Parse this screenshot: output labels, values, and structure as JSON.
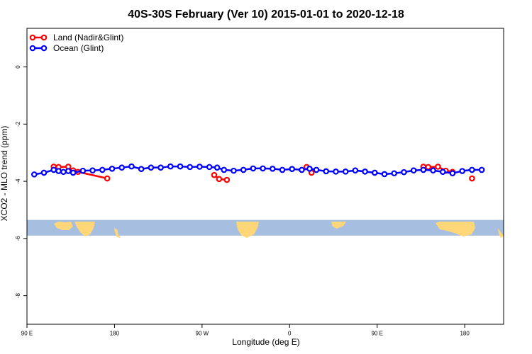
{
  "chart_data": {
    "type": "line",
    "title": "40S-30S February (Ver 10)   2015-01-01 to 2020-12-18",
    "xlabel": "Longitude (deg E)",
    "ylabel": "XCO2 - MLO trend (ppm)",
    "xlim": [
      90,
      580
    ],
    "ylim": [
      -9,
      1.35
    ],
    "xticks": [
      {
        "value": 90,
        "label": "90 E"
      },
      {
        "value": 180,
        "label": "180"
      },
      {
        "value": 270,
        "label": "90 W"
      },
      {
        "value": 360,
        "label": "0"
      },
      {
        "value": 450,
        "label": "90 E"
      },
      {
        "value": 540,
        "label": "180"
      }
    ],
    "yticks": [
      {
        "value": 0,
        "label": "0"
      },
      {
        "value": -2,
        "label": "-2"
      },
      {
        "value": -4,
        "label": "-4"
      },
      {
        "value": -6,
        "label": "-6"
      },
      {
        "value": -8,
        "label": "-8"
      }
    ],
    "grid": false,
    "legend_position": "top-left",
    "series": [
      {
        "name": "Land (Nadir&Glint)",
        "color": "#ff0000",
        "segments": [
          [
            [
              117.5,
              -3.49
            ],
            [
              122.5,
              -3.5
            ],
            [
              132.5,
              -3.49
            ],
            [
              137.5,
              -3.62
            ],
            [
              142.5,
              -3.67
            ],
            [
              172.5,
              -3.9
            ]
          ],
          [
            [
              282.5,
              -3.78
            ],
            [
              287.5,
              -3.92
            ],
            [
              295.5,
              -3.95
            ]
          ],
          [
            [
              377.5,
              -3.5
            ],
            [
              382.5,
              -3.7
            ]
          ],
          [
            [
              497.5,
              -3.49
            ],
            [
              502.5,
              -3.5
            ],
            [
              512.5,
              -3.49
            ],
            [
              520.5,
              -3.63
            ],
            [
              527.5,
              -3.67
            ]
          ],
          [
            [
              547.5,
              -3.9
            ]
          ]
        ]
      },
      {
        "name": "Ocean (Glint)",
        "color": "#0000ff",
        "segments": [
          [
            [
              97.5,
              -3.76
            ],
            [
              107.5,
              -3.7
            ],
            [
              117.5,
              -3.6
            ],
            [
              122.5,
              -3.64
            ],
            [
              127.5,
              -3.67
            ],
            [
              132.5,
              -3.64
            ],
            [
              137.5,
              -3.7
            ],
            [
              147.5,
              -3.63
            ],
            [
              157.5,
              -3.62
            ],
            [
              167.5,
              -3.6
            ],
            [
              177.5,
              -3.56
            ],
            [
              187.5,
              -3.52
            ],
            [
              197.5,
              -3.48
            ],
            [
              207.5,
              -3.57
            ],
            [
              217.5,
              -3.52
            ],
            [
              227.5,
              -3.52
            ],
            [
              237.5,
              -3.48
            ],
            [
              247.5,
              -3.48
            ],
            [
              257.5,
              -3.5
            ],
            [
              267.5,
              -3.49
            ],
            [
              277.5,
              -3.5
            ],
            [
              285.5,
              -3.52
            ],
            [
              292.5,
              -3.6
            ],
            [
              302.5,
              -3.63
            ],
            [
              312.5,
              -3.6
            ],
            [
              322.5,
              -3.55
            ],
            [
              332.5,
              -3.55
            ],
            [
              342.5,
              -3.56
            ],
            [
              352.5,
              -3.6
            ],
            [
              362.5,
              -3.57
            ],
            [
              372.5,
              -3.6
            ],
            [
              380.5,
              -3.56
            ],
            [
              387.5,
              -3.6
            ],
            [
              397.5,
              -3.65
            ],
            [
              407.5,
              -3.66
            ],
            [
              417.5,
              -3.66
            ],
            [
              427.5,
              -3.62
            ],
            [
              437.5,
              -3.66
            ],
            [
              447.5,
              -3.7
            ],
            [
              457.5,
              -3.75
            ],
            [
              467.5,
              -3.72
            ],
            [
              477.5,
              -3.68
            ],
            [
              487.5,
              -3.62
            ],
            [
              497.5,
              -3.6
            ],
            [
              507.5,
              -3.62
            ],
            [
              517.5,
              -3.67
            ],
            [
              527.5,
              -3.72
            ],
            [
              537.5,
              -3.64
            ],
            [
              547.5,
              -3.6
            ],
            [
              557.5,
              -3.6
            ]
          ]
        ]
      }
    ],
    "map_strip": {
      "y_range": [
        -5.35,
        -5.9
      ],
      "ocean_color": "#a6bedf",
      "land_color": "#ffd778"
    }
  }
}
